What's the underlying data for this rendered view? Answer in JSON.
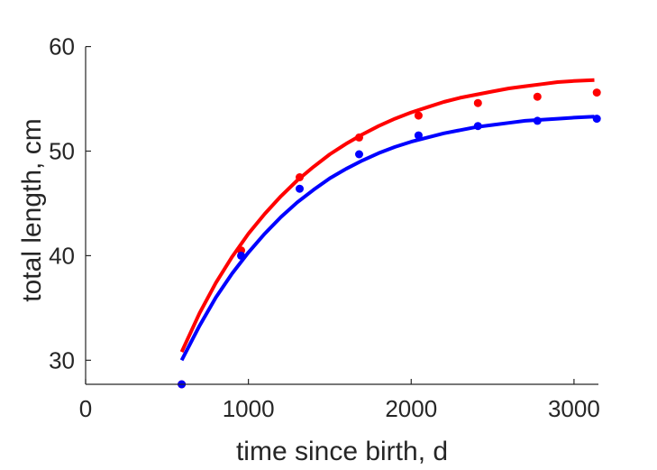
{
  "chart_data": {
    "type": "scatter",
    "title": "",
    "xlabel": "time since birth, d",
    "ylabel": "total length, cm",
    "xlim": [
      0,
      3150
    ],
    "ylim": [
      27.7,
      61
    ],
    "xticks": [
      0,
      1000,
      2000,
      3000
    ],
    "yticks": [
      30,
      40,
      50,
      60
    ],
    "xtick_labels": [
      "0",
      "1000",
      "2000",
      "3000"
    ],
    "ytick_labels": [
      "30",
      "40",
      "50",
      "60"
    ],
    "grid": false,
    "legend": "none",
    "series": [
      {
        "color": "#ff0000",
        "points_x": [
          590,
          955,
          1315,
          1680,
          2045,
          2410,
          2775,
          3140
        ],
        "points_y": [
          27.7,
          40.5,
          47.5,
          51.3,
          53.4,
          54.6,
          55.2,
          55.6
        ],
        "fit_x": [
          590,
          700,
          800,
          900,
          1000,
          1100,
          1200,
          1300,
          1400,
          1500,
          1600,
          1700,
          1800,
          1900,
          2000,
          2100,
          2200,
          2300,
          2400,
          2500,
          2600,
          2700,
          2800,
          2900,
          3000,
          3125
        ],
        "fit_y": [
          30.8,
          34.5,
          37.4,
          39.9,
          42.1,
          44.0,
          45.7,
          47.2,
          48.5,
          49.7,
          50.7,
          51.6,
          52.4,
          53.1,
          53.7,
          54.2,
          54.7,
          55.1,
          55.4,
          55.7,
          56.0,
          56.2,
          56.4,
          56.6,
          56.7,
          56.8
        ]
      },
      {
        "color": "#0000ff",
        "points_x": [
          590,
          955,
          1315,
          1680,
          2045,
          2410,
          2775,
          3140
        ],
        "points_y": [
          27.7,
          40.0,
          46.4,
          49.7,
          51.5,
          52.4,
          52.9,
          53.1
        ],
        "fit_x": [
          590,
          700,
          800,
          900,
          1000,
          1100,
          1200,
          1300,
          1400,
          1500,
          1600,
          1700,
          1800,
          1900,
          2000,
          2100,
          2200,
          2300,
          2400,
          2500,
          2600,
          2700,
          2800,
          2900,
          3000,
          3125
        ],
        "fit_y": [
          30.0,
          33.3,
          36.0,
          38.3,
          40.3,
          42.1,
          43.7,
          45.1,
          46.3,
          47.4,
          48.3,
          49.1,
          49.8,
          50.4,
          50.9,
          51.3,
          51.7,
          52.0,
          52.3,
          52.5,
          52.7,
          52.9,
          53.0,
          53.1,
          53.2,
          53.3
        ]
      }
    ]
  }
}
